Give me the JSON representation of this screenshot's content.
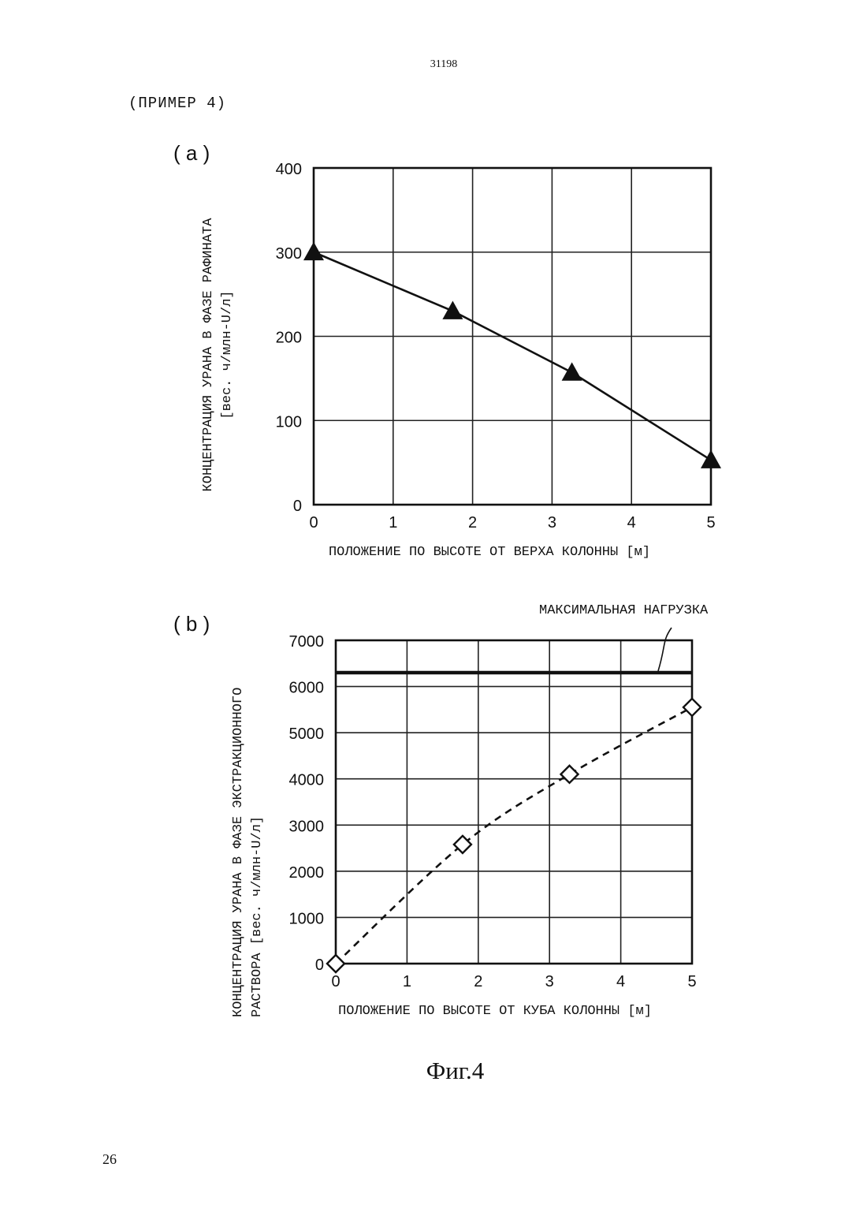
{
  "page": {
    "doc_number": "31198",
    "example_title": "(ПРИМЕР 4)",
    "caption": "Фиг.4",
    "page_number": "26"
  },
  "chart_data": [
    {
      "type": "line",
      "panel_label": "( a )",
      "x": [
        0,
        1.75,
        3.25,
        5
      ],
      "series": [
        {
          "values": [
            300,
            230,
            157,
            53
          ],
          "marker": "filled-triangle",
          "line_style": "solid"
        }
      ],
      "xticks": [
        "0",
        "1",
        "2",
        "3",
        "4",
        "5"
      ],
      "yticks": [
        "0",
        "100",
        "200",
        "300",
        "400"
      ],
      "xlim": [
        0,
        5
      ],
      "ylim": [
        0,
        400
      ],
      "xlabel": "ПОЛОЖЕНИЕ ПО ВЫСОТЕ ОТ ВЕРХА КОЛОННЫ [м]",
      "ylabel_lines": [
        "КОНЦЕНТРАЦИЯ УРАНА В ФАЗЕ РАФИНАТА",
        "[вес. ч/млн-U/л]"
      ],
      "grid": true
    },
    {
      "type": "line",
      "panel_label": "( b )",
      "x": [
        0,
        1.78,
        3.28,
        5
      ],
      "series": [
        {
          "values": [
            0,
            2580,
            4100,
            5550
          ],
          "marker": "open-diamond",
          "line_style": "dashed"
        }
      ],
      "reference_line": {
        "value": 6300,
        "label": "МАКСИМАЛЬНАЯ НАГРУЗКА"
      },
      "xticks": [
        "0",
        "1",
        "2",
        "3",
        "4",
        "5"
      ],
      "yticks": [
        "0",
        "1000",
        "2000",
        "3000",
        "4000",
        "5000",
        "6000",
        "7000"
      ],
      "xlim": [
        0,
        5
      ],
      "ylim": [
        0,
        7000
      ],
      "xlabel": "ПОЛОЖЕНИЕ ПО ВЫСОТЕ ОТ КУБА КОЛОННЫ [м]",
      "ylabel_lines": [
        "КОНЦЕНТРАЦИЯ УРАНА В ФАЗЕ ЭКСТРАКЦИОННОГО",
        "РАСТВОРА [вес. ч/млн-U/л]"
      ],
      "grid": true
    }
  ]
}
